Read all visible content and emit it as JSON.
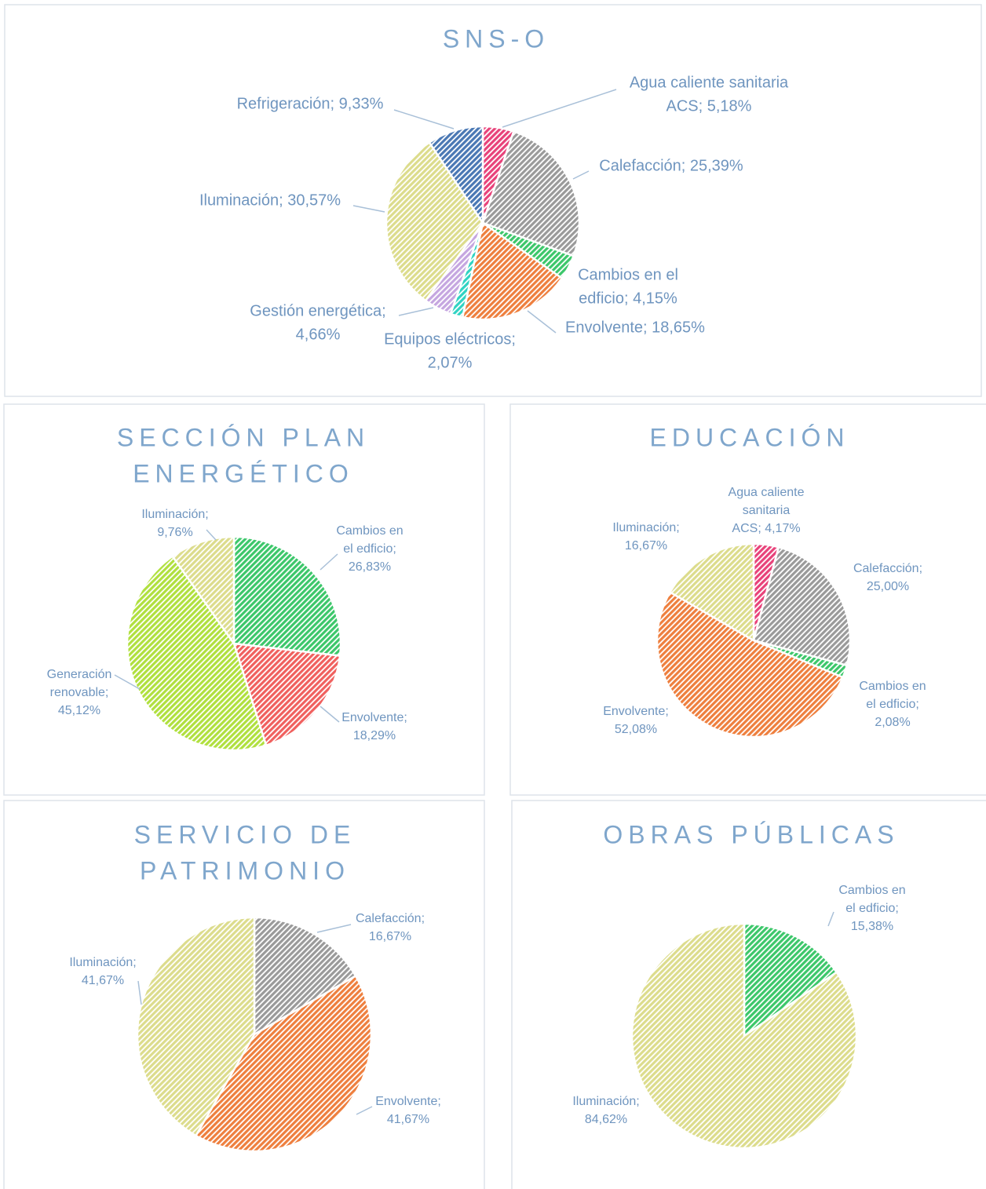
{
  "chart_data": [
    {
      "type": "pie",
      "title": [
        "SNS-O"
      ],
      "values": [
        5.18,
        25.39,
        4.15,
        18.65,
        2.07,
        4.66,
        30.57,
        9.33
      ],
      "value_labels": [
        [
          "Agua caliente sanitaria",
          "ACS; 5,18%"
        ],
        [
          "Calefacción; 25,39%"
        ],
        [
          "Cambios en el",
          "edficio; 4,15%"
        ],
        [
          "Envolvente; 18,65%"
        ],
        [
          "Equipos eléctricos;",
          "2,07%"
        ],
        [
          "Gestión energética;",
          "4,66%"
        ],
        [
          "Iluminación; 30,57%"
        ],
        [
          "Refrigeración; 9,33%"
        ]
      ],
      "colors": [
        "#e8427a",
        "#9a9a9a",
        "#3cc76a",
        "#ee7f3e",
        "#2fd3c3",
        "#c5a6e0",
        "#dcdc8c",
        "#4a78b4"
      ]
    },
    {
      "type": "pie",
      "title": [
        "SECCIÓN PLAN",
        "ENERGÉTICO"
      ],
      "values": [
        26.83,
        18.29,
        45.12,
        9.76
      ],
      "value_labels": [
        [
          "Cambios en",
          "el edficio;",
          "26,83%"
        ],
        [
          "Envolvente;",
          "18,29%"
        ],
        [
          "Generación",
          "renovable;",
          "45,12%"
        ],
        [
          "Iluminación;",
          "9,76%"
        ]
      ],
      "colors": [
        "#3cc76a",
        "#f0605e",
        "#b0e03e",
        "#dcdc8c"
      ]
    },
    {
      "type": "pie",
      "title": [
        "EDUCACIÓN"
      ],
      "values": [
        4.17,
        25.0,
        2.08,
        52.08,
        16.67
      ],
      "value_labels": [
        [
          "Agua caliente",
          "sanitaria",
          "ACS; 4,17%"
        ],
        [
          "Calefacción;",
          "25,00%"
        ],
        [
          "Cambios en",
          "el edficio;",
          "2,08%"
        ],
        [
          "Envolvente;",
          "52,08%"
        ],
        [
          "Iluminación;",
          "16,67%"
        ]
      ],
      "colors": [
        "#e8427a",
        "#9a9a9a",
        "#3cc76a",
        "#ee7f3e",
        "#dcdc8c"
      ]
    },
    {
      "type": "pie",
      "title": [
        "SERVICIO DE",
        "PATRIMONIO"
      ],
      "values": [
        16.67,
        41.67,
        41.67
      ],
      "value_labels": [
        [
          "Calefacción;",
          "16,67%"
        ],
        [
          "Envolvente;",
          "41,67%"
        ],
        [
          "Iluminación;",
          "41,67%"
        ]
      ],
      "colors": [
        "#9a9a9a",
        "#ee7f3e",
        "#dcdc8c"
      ]
    },
    {
      "type": "pie",
      "title": [
        "OBRAS PÚBLICAS"
      ],
      "values": [
        15.38,
        84.62
      ],
      "value_labels": [
        [
          "Cambios en",
          "el edficio;",
          "15,38%"
        ],
        [
          "Iluminación;",
          "84,62%"
        ]
      ],
      "colors": [
        "#3cc76a",
        "#dcdc8c"
      ]
    }
  ]
}
